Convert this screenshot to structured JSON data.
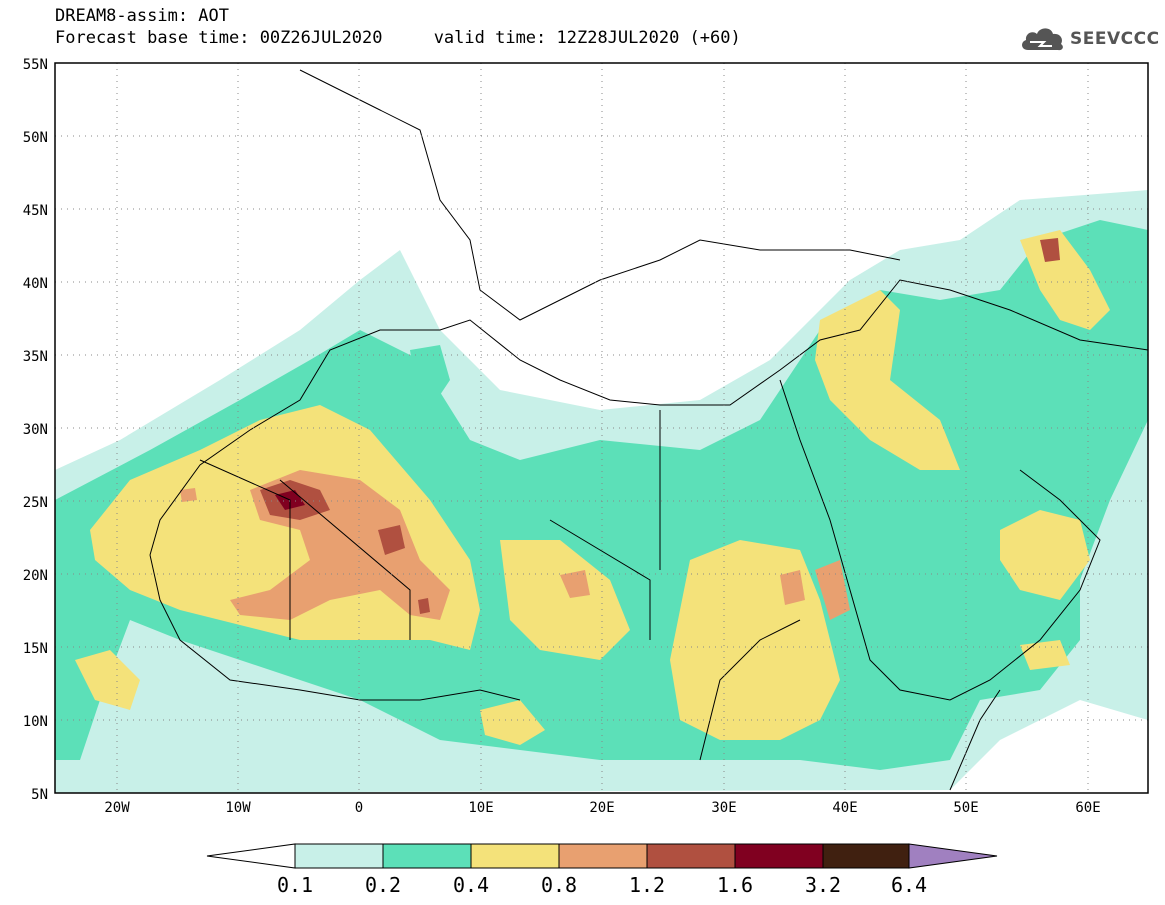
{
  "title": {
    "line1": "DREAM8-assim: AOT",
    "line2": "Forecast base time: 00Z26JUL2020     valid time: 12Z28JUL2020 (+60)"
  },
  "logo": {
    "text": "SEEVCCC",
    "icon": "cloud-icon"
  },
  "map": {
    "lon_range": [
      -25,
      65
    ],
    "lat_range": [
      5,
      55
    ],
    "lat_labels": [
      "55N",
      "50N",
      "45N",
      "40N",
      "35N",
      "30N",
      "25N",
      "20N",
      "15N",
      "10N",
      "5N"
    ],
    "lon_labels": [
      "20W",
      "10W",
      "0",
      "10E",
      "20E",
      "30E",
      "40E",
      "50E",
      "60E"
    ],
    "gridlines": "dotted"
  },
  "legend": {
    "labels": [
      "0.1",
      "0.2",
      "0.4",
      "0.8",
      "1.2",
      "1.6",
      "3.2",
      "6.4"
    ],
    "colors": [
      "#c8f0e8",
      "#5ce0b8",
      "#f4e27a",
      "#e8a070",
      "#b05040",
      "#800020",
      "#402010",
      "#a080c0"
    ],
    "under_color": "#ffffff"
  },
  "colors": {
    "c1": "#c8f0e8",
    "c2": "#5ce0b8",
    "c3": "#f4e27a",
    "c4": "#e8a070",
    "c5": "#b05040",
    "c6": "#800020",
    "c7": "#402010"
  }
}
